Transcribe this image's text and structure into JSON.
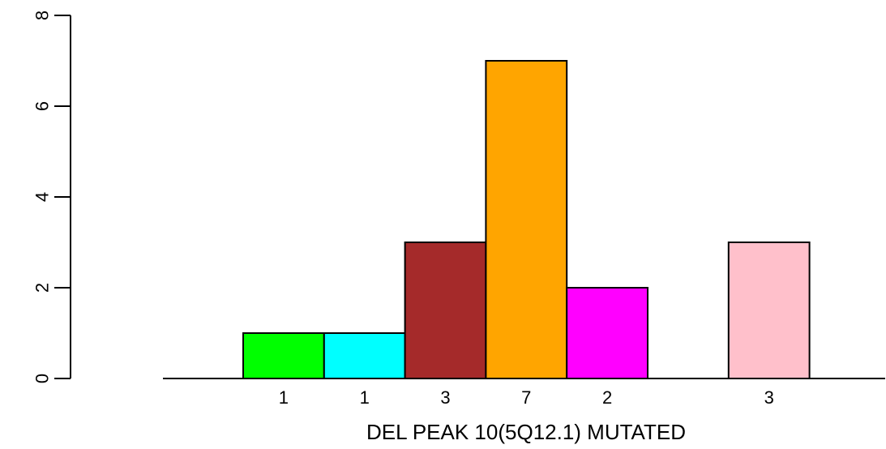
{
  "chart_data": {
    "type": "bar",
    "title": "",
    "xlabel": "DEL PEAK 10(5Q12.1) MUTATED",
    "ylabel": "",
    "ylim": [
      0,
      8
    ],
    "yticks": [
      0,
      2,
      4,
      6,
      8
    ],
    "grid": false,
    "legend": "none",
    "bars": [
      {
        "value": 1,
        "label": "1",
        "color": "#00ff00"
      },
      {
        "value": 1,
        "label": "1",
        "color": "#00ffff"
      },
      {
        "value": 3,
        "label": "3",
        "color": "#a52a2a"
      },
      {
        "value": 7,
        "label": "7",
        "color": "#ffa500"
      },
      {
        "value": 2,
        "label": "2",
        "color": "#ff00ff"
      },
      {
        "value": 0,
        "label": "",
        "color": "#ffffff"
      },
      {
        "value": 3,
        "label": "3",
        "color": "#ffc0cb"
      }
    ]
  }
}
